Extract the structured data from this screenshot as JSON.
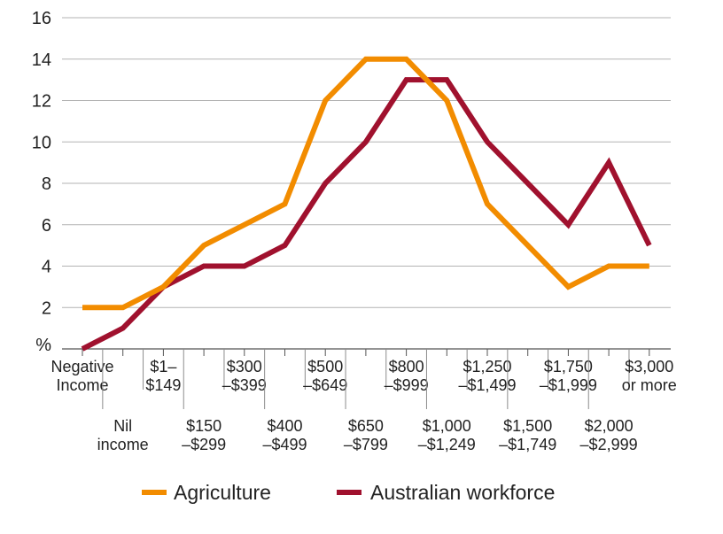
{
  "chart_data": {
    "type": "line",
    "title": "",
    "xlabel": "",
    "ylabel": "%",
    "ylim": [
      0,
      16
    ],
    "yticks": [
      "16",
      "14",
      "12",
      "10",
      "8",
      "6",
      "4",
      "2"
    ],
    "categories": [
      [
        "Negative",
        "Income"
      ],
      [
        "Nil",
        "income"
      ],
      [
        "$1–",
        "$149"
      ],
      [
        "$150",
        "–$299"
      ],
      [
        "$300",
        "–$399"
      ],
      [
        "$400",
        "–$499"
      ],
      [
        "$500",
        "–$649"
      ],
      [
        "$650",
        "–$799"
      ],
      [
        "$800",
        "–$999"
      ],
      [
        "$1,000",
        "–$1,249"
      ],
      [
        "$1,250",
        "–$1,499"
      ],
      [
        "$1,500",
        "–$1,749"
      ],
      [
        "$1,750",
        "–$1,999"
      ],
      [
        "$2,000",
        "–$2,999"
      ],
      [
        "$3,000",
        "or more"
      ]
    ],
    "series": [
      {
        "name": "Agriculture",
        "color": "#f28c00",
        "values": [
          2,
          2,
          3,
          5,
          6,
          7,
          12,
          14,
          14,
          12,
          7,
          5,
          3,
          4,
          4
        ]
      },
      {
        "name": "Australian workforce",
        "color": "#a0112e",
        "values": [
          0,
          1,
          3,
          4,
          4,
          5,
          8,
          10,
          13,
          13,
          10,
          8,
          6,
          9,
          5
        ]
      }
    ],
    "grid": true,
    "legend": "bottom"
  }
}
